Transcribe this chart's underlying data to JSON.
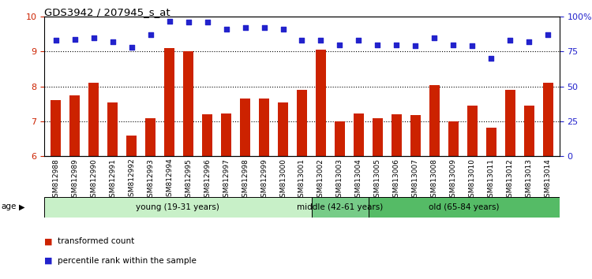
{
  "title": "GDS3942 / 207945_s_at",
  "categories": [
    "GSM812988",
    "GSM812989",
    "GSM812990",
    "GSM812991",
    "GSM812992",
    "GSM812993",
    "GSM812994",
    "GSM812995",
    "GSM812996",
    "GSM812997",
    "GSM812998",
    "GSM812999",
    "GSM813000",
    "GSM813001",
    "GSM813002",
    "GSM813003",
    "GSM813004",
    "GSM813005",
    "GSM813006",
    "GSM813007",
    "GSM813008",
    "GSM813009",
    "GSM813010",
    "GSM813011",
    "GSM813012",
    "GSM813013",
    "GSM813014"
  ],
  "bar_values": [
    7.6,
    7.75,
    8.1,
    7.55,
    6.6,
    7.1,
    9.1,
    9.0,
    7.2,
    7.22,
    7.65,
    7.65,
    7.55,
    7.9,
    9.05,
    7.0,
    7.22,
    7.1,
    7.2,
    7.18,
    8.05,
    7.0,
    7.45,
    6.82,
    7.9,
    7.45,
    8.1
  ],
  "dot_values": [
    83,
    84,
    85,
    82,
    78,
    87,
    97,
    96,
    96,
    91,
    92,
    92,
    91,
    83,
    83,
    80,
    83,
    80,
    80,
    79,
    85,
    80,
    79,
    70,
    83,
    82,
    87
  ],
  "ylim_left": [
    6,
    10
  ],
  "ylim_right": [
    0,
    100
  ],
  "yticks_left": [
    6,
    7,
    8,
    9,
    10
  ],
  "yticks_right": [
    0,
    25,
    50,
    75,
    100
  ],
  "ytick_labels_right": [
    "0",
    "25",
    "50",
    "75",
    "100%"
  ],
  "bar_color": "#cc2200",
  "dot_color": "#2222cc",
  "grid_color": "#000000",
  "age_groups": [
    {
      "label": "young (19-31 years)",
      "start": 0,
      "end": 14,
      "color": "#bbeecc"
    },
    {
      "label": "middle (42-61 years)",
      "start": 14,
      "end": 17,
      "color": "#66bb77"
    },
    {
      "label": "old (65-84 years)",
      "start": 17,
      "end": 27,
      "color": "#44bb55"
    }
  ],
  "legend_bar_label": "transformed count",
  "legend_dot_label": "percentile rank within the sample",
  "left_tick_color": "#cc2200",
  "right_tick_color": "#2222cc",
  "ybase": 6
}
